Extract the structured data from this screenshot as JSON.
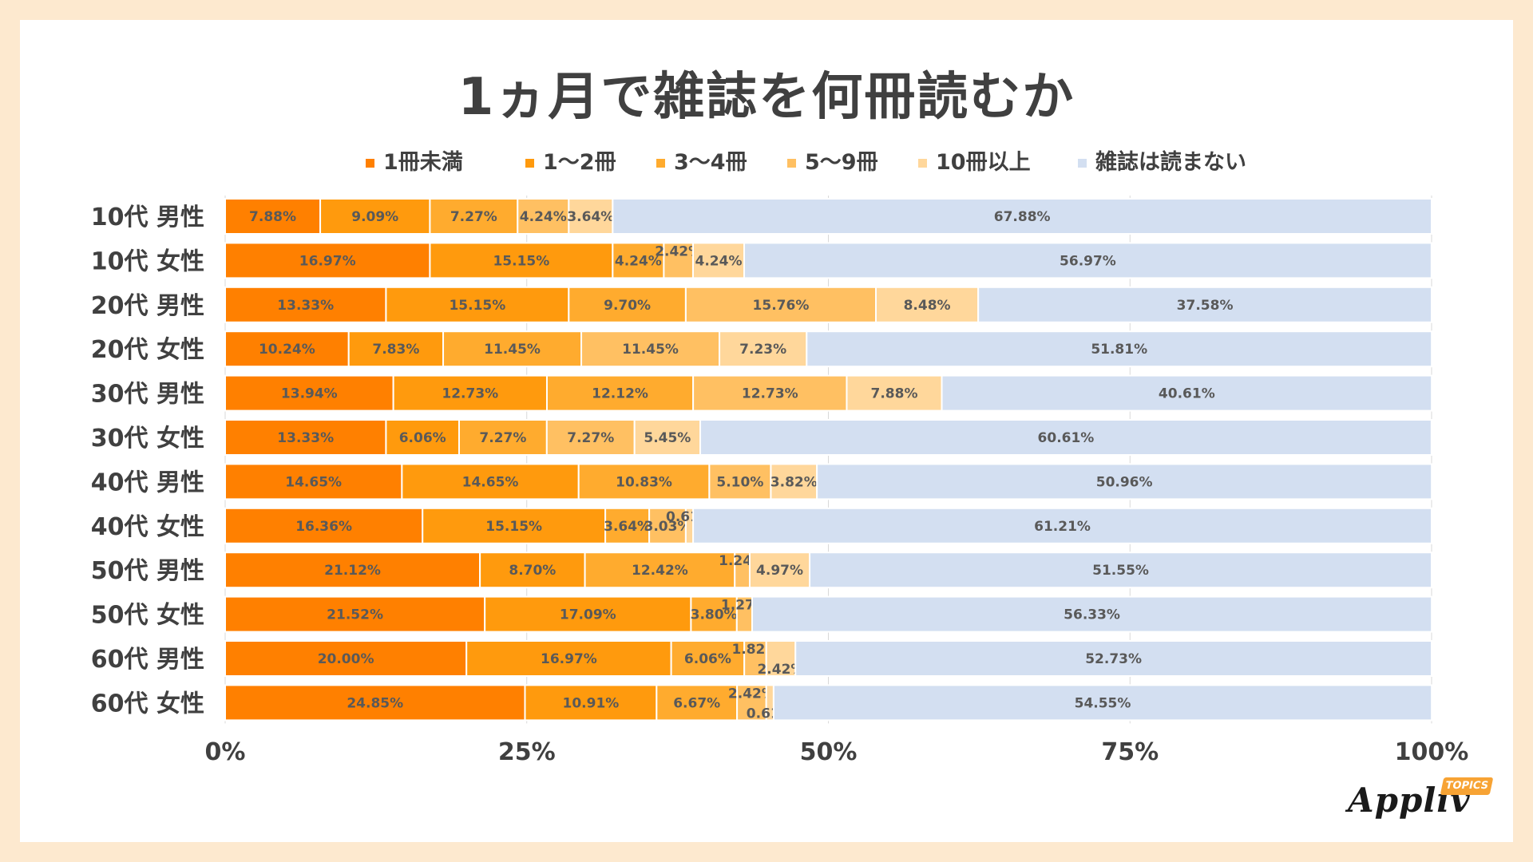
{
  "chart_data": {
    "type": "bar",
    "orientation": "horizontal",
    "stacked": true,
    "title": "1ヵ月で雑誌を何冊読むか",
    "categories": [
      "10代 男性",
      "10代 女性",
      "20代 男性",
      "20代 女性",
      "30代 男性",
      "30代 女性",
      "40代 男性",
      "40代 女性",
      "50代 男性",
      "50代 女性",
      "60代 男性",
      "60代 女性"
    ],
    "series": [
      {
        "name": "1冊未満",
        "color": "#ff8000",
        "values": [
          7.88,
          16.97,
          13.33,
          10.24,
          13.94,
          13.33,
          14.65,
          16.36,
          21.12,
          21.52,
          20.0,
          24.85
        ]
      },
      {
        "name": "1〜2冊",
        "color": "#ff9a0d",
        "values": [
          9.09,
          15.15,
          15.15,
          7.83,
          12.73,
          6.06,
          14.65,
          15.15,
          8.7,
          17.09,
          16.97,
          10.91
        ]
      },
      {
        "name": "3〜4冊",
        "color": "#ffab2e",
        "values": [
          7.27,
          4.24,
          9.7,
          11.45,
          12.12,
          7.27,
          10.83,
          3.64,
          12.42,
          3.8,
          6.06,
          6.67
        ]
      },
      {
        "name": "5〜9冊",
        "color": "#ffc062",
        "values": [
          4.24,
          2.42,
          15.76,
          11.45,
          12.73,
          7.27,
          5.1,
          3.03,
          1.24,
          1.27,
          1.82,
          2.42
        ]
      },
      {
        "name": "10冊以上",
        "color": "#ffd79b",
        "values": [
          3.64,
          4.24,
          8.48,
          7.23,
          7.88,
          5.45,
          3.82,
          0.61,
          4.97,
          0,
          2.42,
          0.61
        ]
      },
      {
        "name": "雑誌は読まない",
        "color": "#d3dff1",
        "values": [
          67.88,
          56.97,
          37.58,
          51.81,
          40.61,
          60.61,
          50.96,
          61.21,
          51.55,
          56.33,
          52.73,
          54.55
        ]
      }
    ],
    "xlim": [
      0,
      100
    ],
    "xticks": [
      "0%",
      "25%",
      "50%",
      "75%",
      "100%"
    ],
    "grid": true,
    "legend": "top"
  },
  "logo": {
    "name": "Appliv",
    "badge": "TOPICS"
  }
}
